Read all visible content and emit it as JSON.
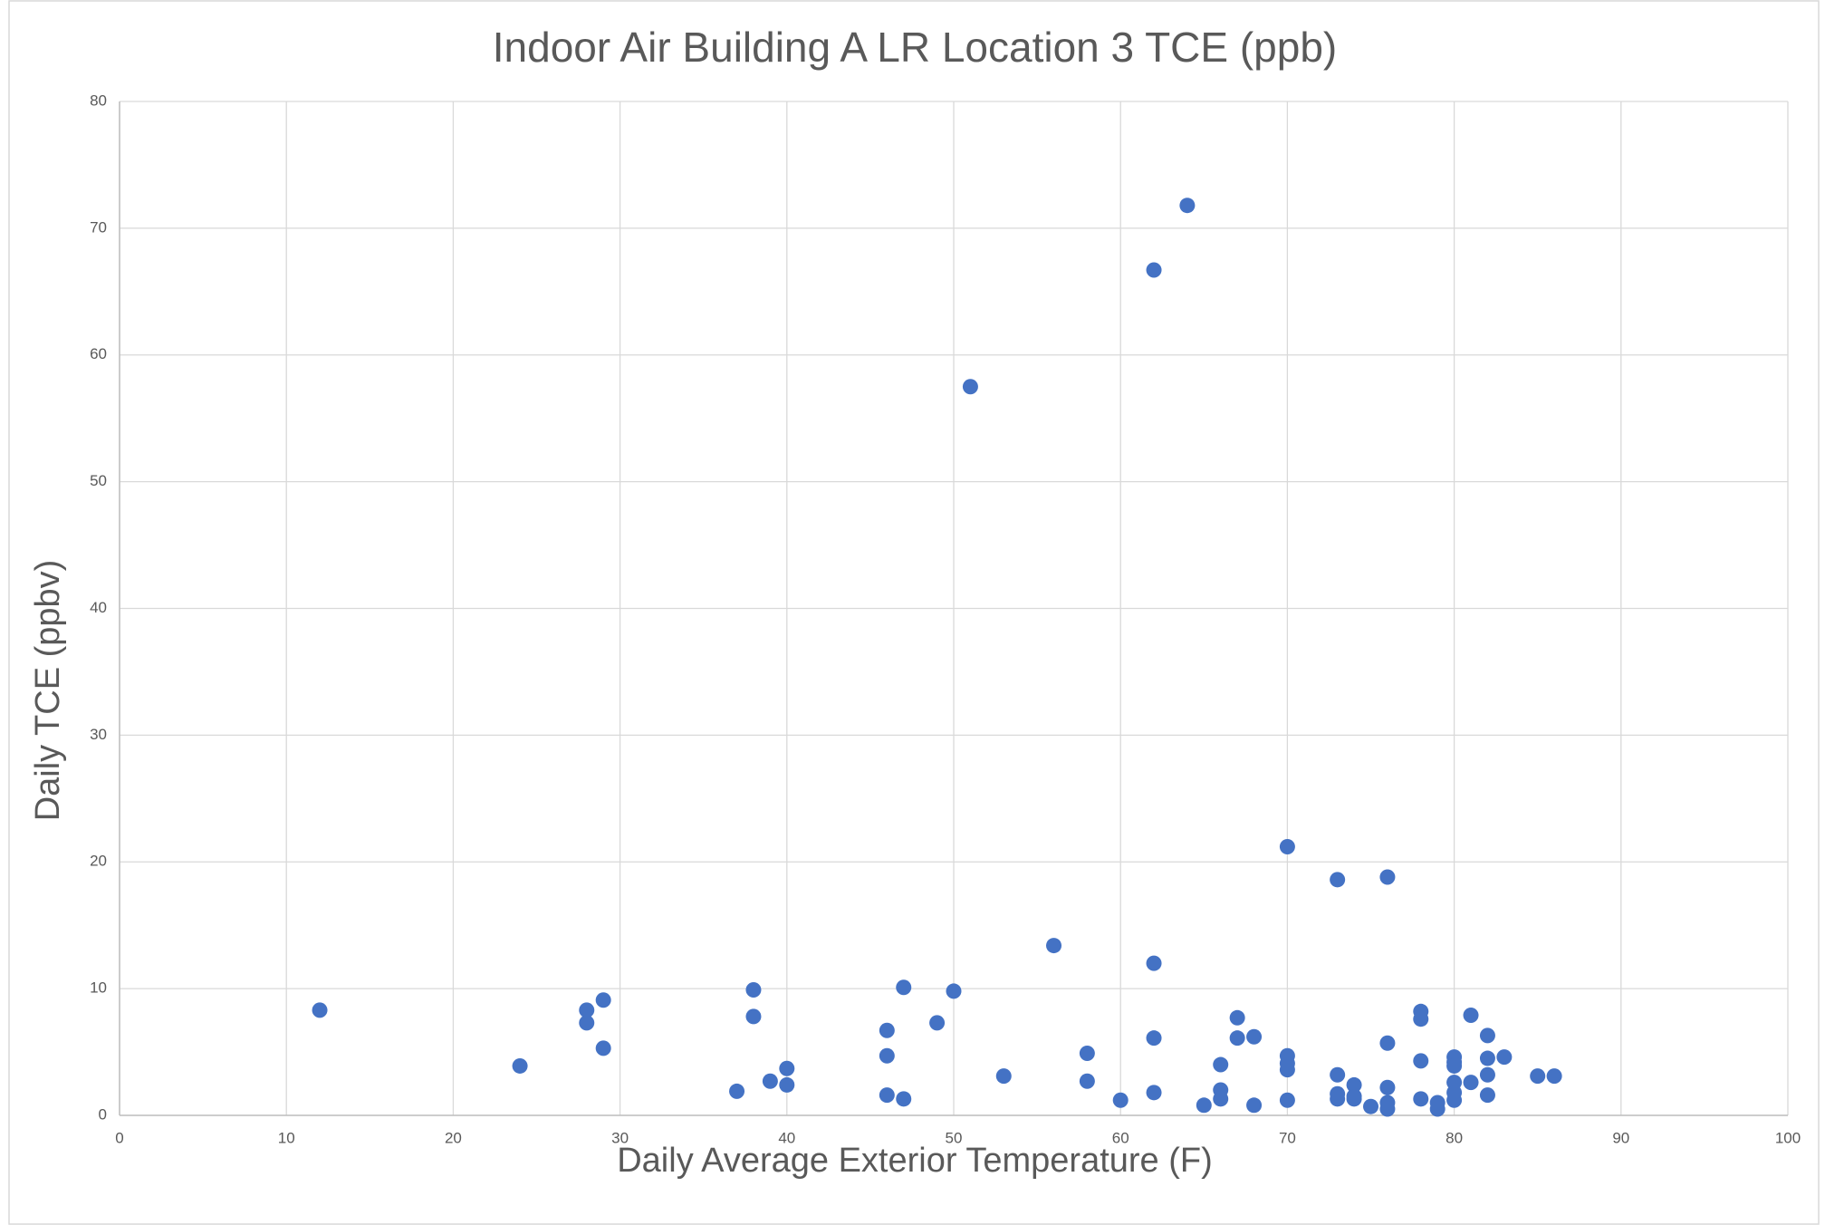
{
  "chart_data": {
    "type": "scatter",
    "title": "Indoor Air Building A LR Location 3 TCE (ppb)",
    "x_label": "Daily Average Exterior Temperature (F)",
    "y_label": "Daily TCE  (ppbv)",
    "color": "#4472c4",
    "grid": true,
    "xlim": [
      0,
      100
    ],
    "xticks": [
      0,
      10,
      20,
      30,
      40,
      50,
      60,
      70,
      80,
      90,
      100
    ],
    "ylim": [
      0,
      80
    ],
    "yticks": [
      0,
      10,
      20,
      30,
      40,
      50,
      60,
      70,
      80
    ],
    "x": [
      12,
      24,
      28,
      28,
      29,
      29,
      37,
      38,
      38,
      39,
      40,
      40,
      46,
      46,
      46,
      47,
      47,
      49,
      50,
      51,
      53,
      56,
      58,
      58,
      60,
      62,
      62,
      62,
      62,
      64,
      65,
      66,
      66,
      66,
      67,
      67,
      68,
      68,
      70,
      70,
      70,
      70,
      70,
      73,
      73,
      73,
      73,
      74,
      74,
      74,
      75,
      76,
      76,
      76,
      76,
      76,
      78,
      78,
      78,
      78,
      79,
      79,
      80,
      80,
      80,
      80,
      80,
      80,
      81,
      81,
      82,
      82,
      82,
      82,
      83,
      85,
      86
    ],
    "values": [
      8.3,
      3.9,
      8.3,
      7.3,
      9.1,
      5.3,
      1.9,
      9.9,
      7.8,
      2.7,
      3.7,
      2.4,
      6.7,
      4.7,
      1.6,
      10.1,
      1.3,
      7.3,
      9.8,
      57.5,
      3.1,
      13.4,
      4.9,
      2.7,
      1.2,
      66.7,
      12.0,
      6.1,
      1.8,
      71.8,
      0.8,
      4.0,
      2.0,
      1.3,
      7.7,
      6.1,
      6.2,
      0.8,
      21.2,
      4.7,
      4.1,
      3.6,
      1.2,
      18.6,
      3.2,
      1.7,
      1.3,
      2.4,
      1.5,
      1.3,
      0.7,
      18.8,
      5.7,
      2.2,
      1.0,
      0.5,
      8.2,
      7.6,
      4.3,
      1.3,
      1.0,
      0.5,
      4.6,
      4.2,
      3.9,
      2.6,
      1.8,
      1.2,
      7.9,
      2.6,
      6.3,
      4.5,
      3.2,
      1.6,
      4.6,
      3.1,
      3.1
    ]
  }
}
